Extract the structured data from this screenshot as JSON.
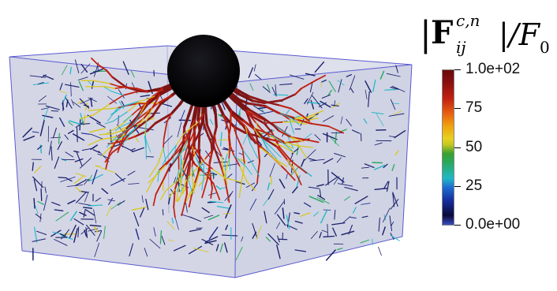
{
  "colorbar": {
    "title_prefix": "|",
    "title_symbol": "F",
    "title_superscript": "c,n",
    "title_subscript": "ij",
    "title_suffix": "|/F",
    "title_suffix_sub": "0",
    "ticks": [
      "1.0e+02",
      "75",
      "50",
      "25",
      "0.0e+00"
    ],
    "range": [
      0,
      100
    ]
  },
  "colors": {
    "box_edge": "#5a5ad0",
    "box_fill": "#c8cbe0",
    "sphere": "#050508",
    "strong_chain": "#7a1414",
    "weak_chain": "#1a1f6a"
  }
}
